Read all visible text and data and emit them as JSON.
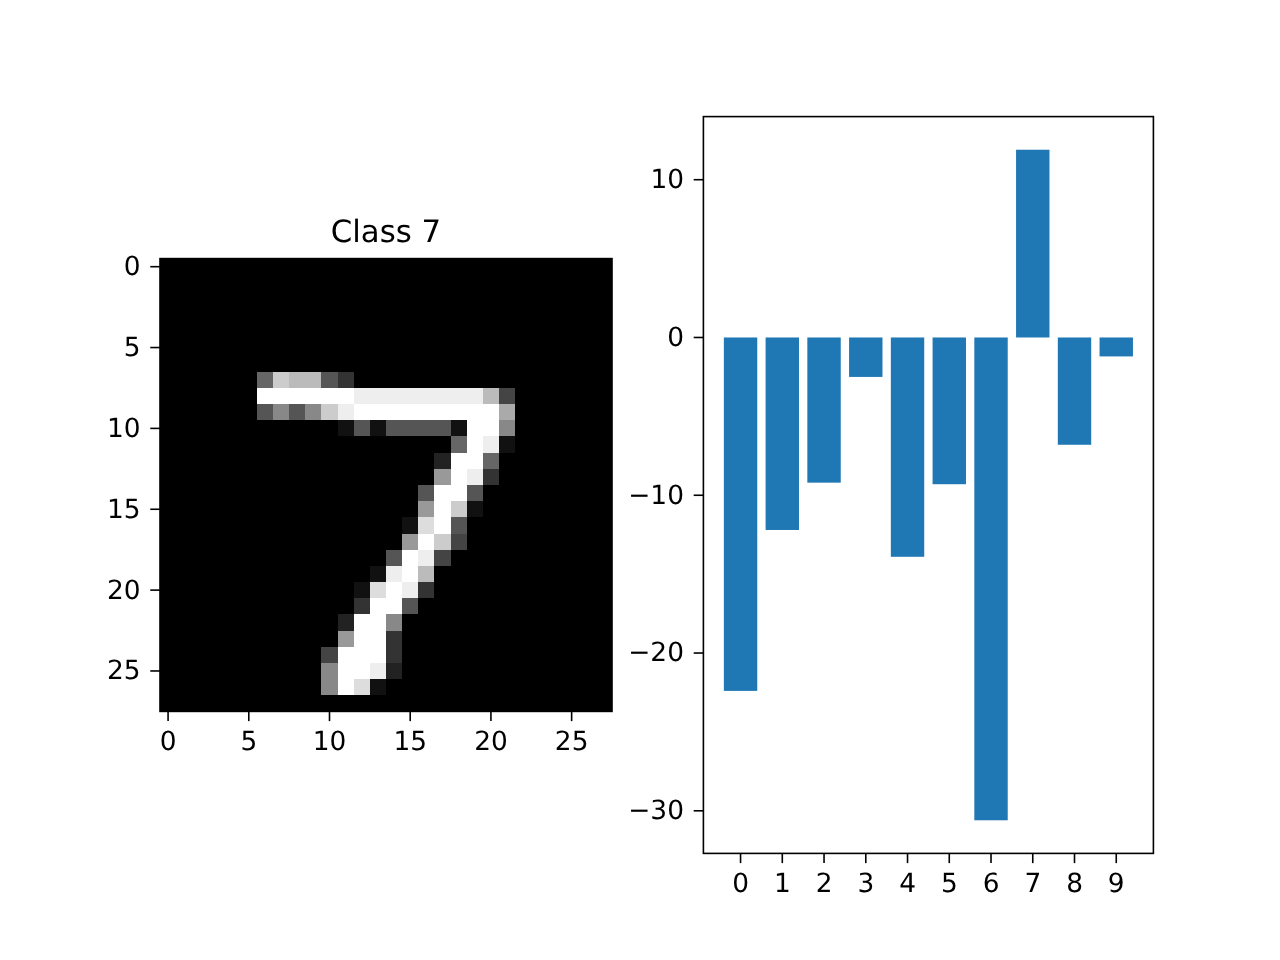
{
  "chart_data": [
    {
      "type": "heatmap",
      "title": "Class 7",
      "xlim": [
        -0.5,
        27.5
      ],
      "ylim": [
        27.5,
        -0.5
      ],
      "xticks": [
        0,
        5,
        10,
        15,
        20,
        25
      ],
      "yticks": [
        0,
        5,
        10,
        15,
        20,
        25
      ]
    },
    {
      "type": "bar",
      "categories": [
        "0",
        "1",
        "2",
        "3",
        "4",
        "5",
        "6",
        "7",
        "8",
        "9"
      ],
      "values": [
        -22.4,
        -12.2,
        -9.2,
        -2.5,
        -13.9,
        -9.3,
        -30.6,
        11.9,
        -6.8,
        -1.2
      ],
      "color": "#1f77b4",
      "ylim": [
        -32.7,
        14.0
      ],
      "yticks": [
        -30,
        -20,
        -10,
        0,
        10
      ]
    }
  ]
}
